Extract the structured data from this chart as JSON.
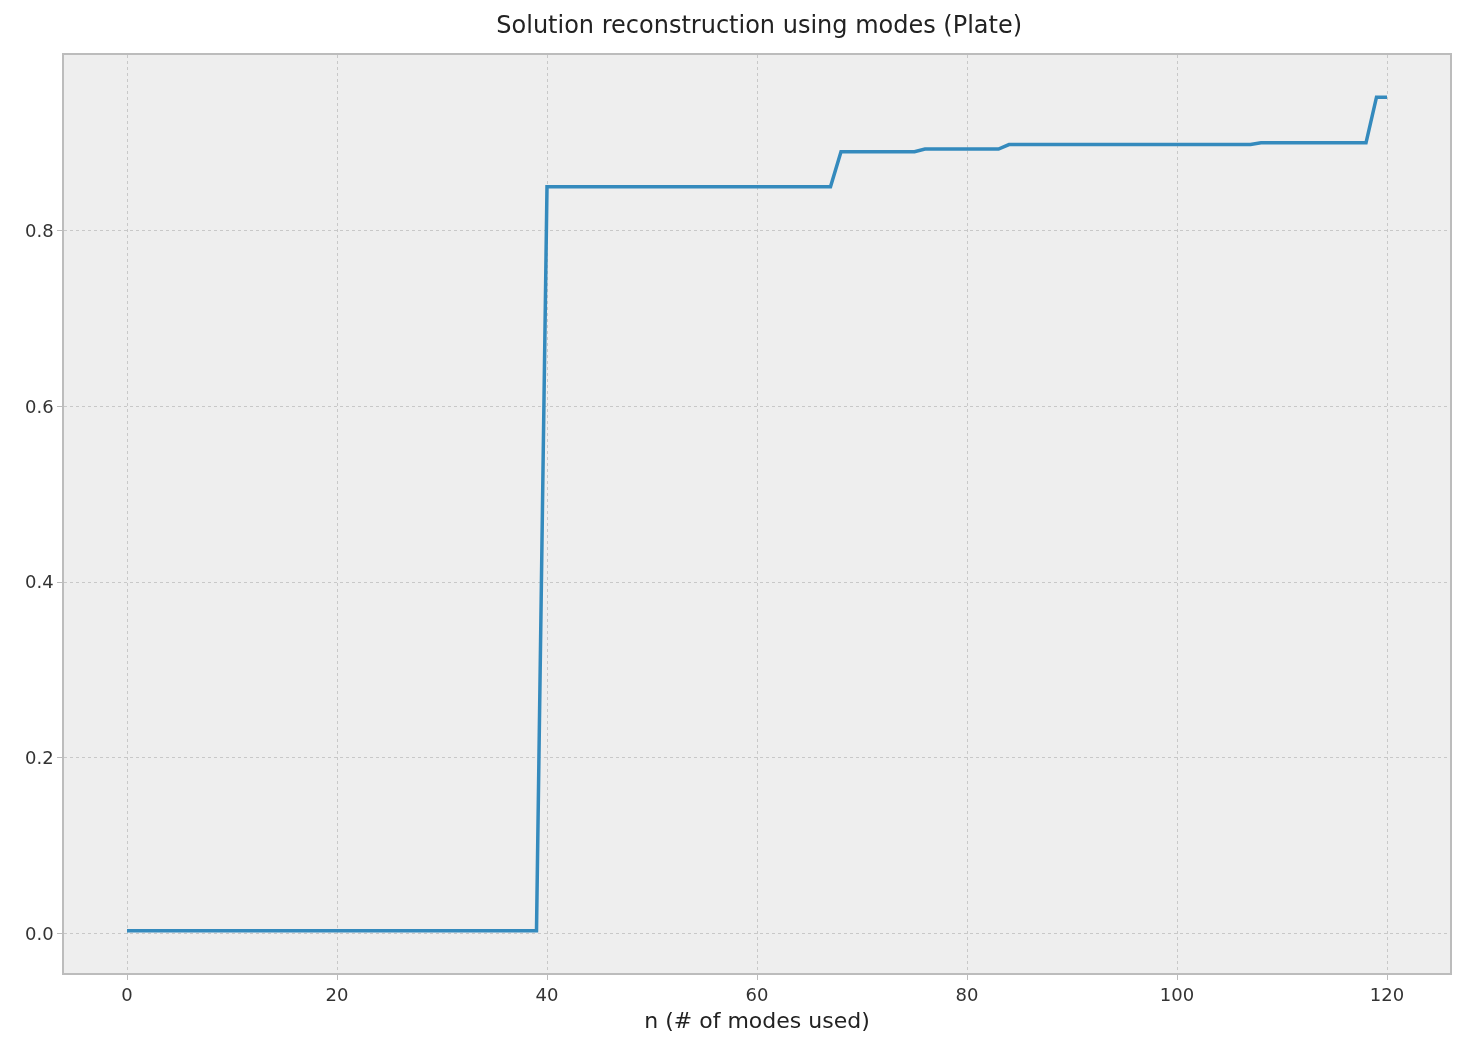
{
  "chart_data": {
    "type": "line",
    "title": "Solution reconstruction using modes (Plate)",
    "xlabel": "n (# of modes used)",
    "x": [
      0,
      39,
      40,
      67,
      68,
      75,
      76,
      83,
      84,
      107,
      108,
      118,
      119,
      120
    ],
    "series": [
      {
        "color": "#348abd",
        "values": [
          0.003,
          0.003,
          0.85,
          0.85,
          0.89,
          0.89,
          0.893,
          0.893,
          0.898,
          0.898,
          0.9,
          0.9,
          0.952,
          0.952
        ]
      }
    ],
    "xlim": [
      -6,
      126
    ],
    "xticks": [
      0,
      20,
      40,
      60,
      80,
      100,
      120
    ],
    "ylim": [
      -0.045,
      1.0
    ],
    "yticks": [
      {
        "value": 0,
        "label": "0.0"
      },
      {
        "value": 0.2,
        "label": "0.2"
      },
      {
        "value": 0.4,
        "label": "0.4"
      },
      {
        "value": 0.6,
        "label": "0.6"
      },
      {
        "value": 0.8,
        "label": "0.8"
      }
    ],
    "grid": true,
    "marker": "none",
    "line_style": "solid"
  }
}
